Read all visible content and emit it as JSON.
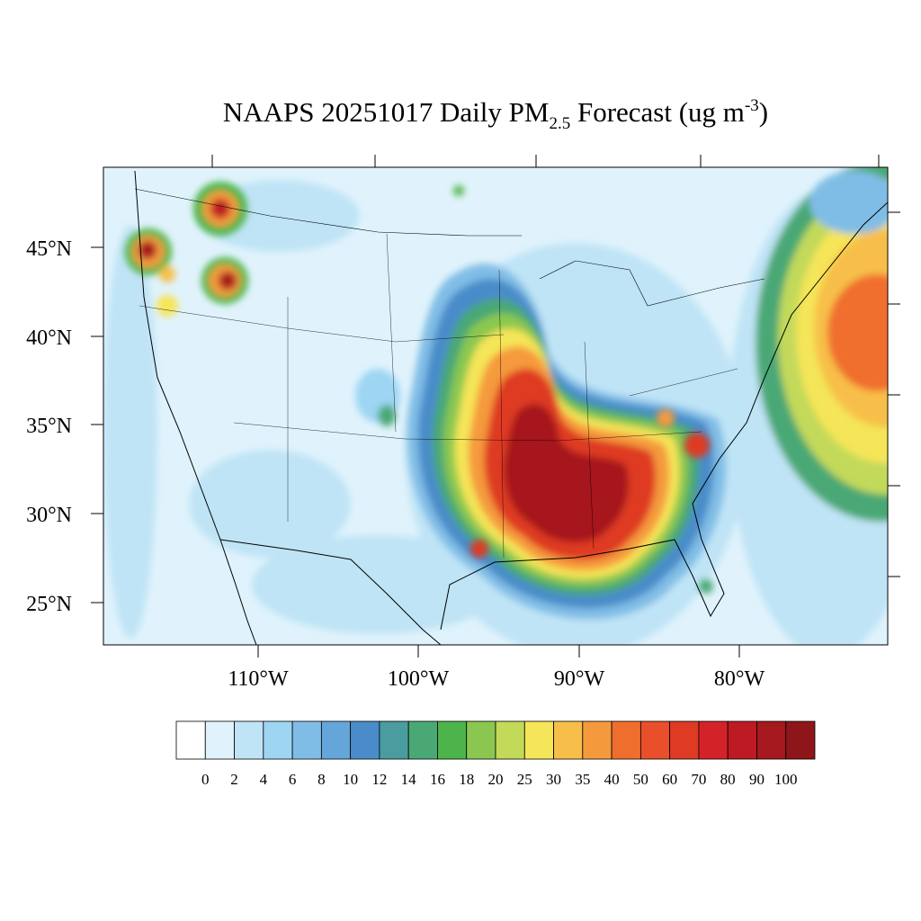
{
  "title": {
    "main": "NAAPS 20251017 Daily PM",
    "sub": "2.5",
    "rest": " Forecast (ug m",
    "sup": "-3",
    "end": ")"
  },
  "lat_labels": [
    "45°N",
    "40°N",
    "35°N",
    "30°N",
    "25°N"
  ],
  "lon_labels": [
    "110°W",
    "100°W",
    "90°W",
    "80°W"
  ],
  "colorbar": {
    "colors": [
      "#ffffff",
      "#e0f3fc",
      "#bfe4f6",
      "#9dd5f3",
      "#80bde6",
      "#64a6da",
      "#4a8cc9",
      "#4a9c9f",
      "#4aa875",
      "#4cb44a",
      "#8bc750",
      "#c3d95a",
      "#f5e558",
      "#f7bf4a",
      "#f59a3c",
      "#f06e2d",
      "#e84f2a",
      "#de3a24",
      "#d42229",
      "#bd1a23",
      "#a6191f",
      "#8e161a"
    ],
    "labels": [
      0,
      2,
      4,
      6,
      8,
      10,
      12,
      14,
      16,
      18,
      20,
      25,
      30,
      35,
      40,
      50,
      60,
      70,
      80,
      90,
      100
    ]
  }
}
